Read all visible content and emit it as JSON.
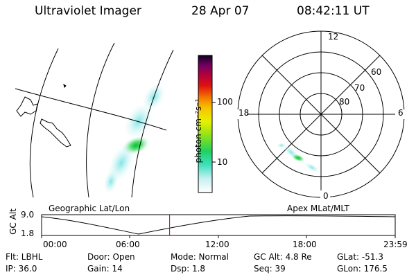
{
  "header": {
    "title": "Ultraviolet Imager",
    "date": "28 Apr 07",
    "time": "08:42:11 UT"
  },
  "colorbar": {
    "label": "photon cm⁻²s⁻¹",
    "ticks": [
      "100",
      "10"
    ]
  },
  "polar": {
    "mlt_labels": [
      "12",
      "18",
      "6",
      "0"
    ],
    "lat_labels": [
      "60",
      "70",
      "80"
    ]
  },
  "altitude_plot": {
    "left_caption": "Geographic Lat/Lon",
    "right_caption": "Apex MLat/MLT",
    "ylabel": "GC Alt",
    "yticks": [
      "9.0",
      "1.8"
    ],
    "xticks": [
      "00:00",
      "06:00",
      "12:00",
      "18:00",
      "23:59"
    ],
    "current_time_fraction": 0.362
  },
  "info": {
    "filter": "Flt: LBHL",
    "ip": "IP: 36.0",
    "door": "Door: Open",
    "gain": "Gain: 14",
    "mode": "Mode: Normal",
    "dsp": "Dsp:    1.8",
    "gc_alt": "GC Alt: 4.8 Re",
    "seq": "Seq: 39",
    "glat": "GLat: -51.3",
    "glon": "GLon: 176.5"
  },
  "colors": {
    "frame": "#000000",
    "current_time_marker": "#cc0000"
  }
}
